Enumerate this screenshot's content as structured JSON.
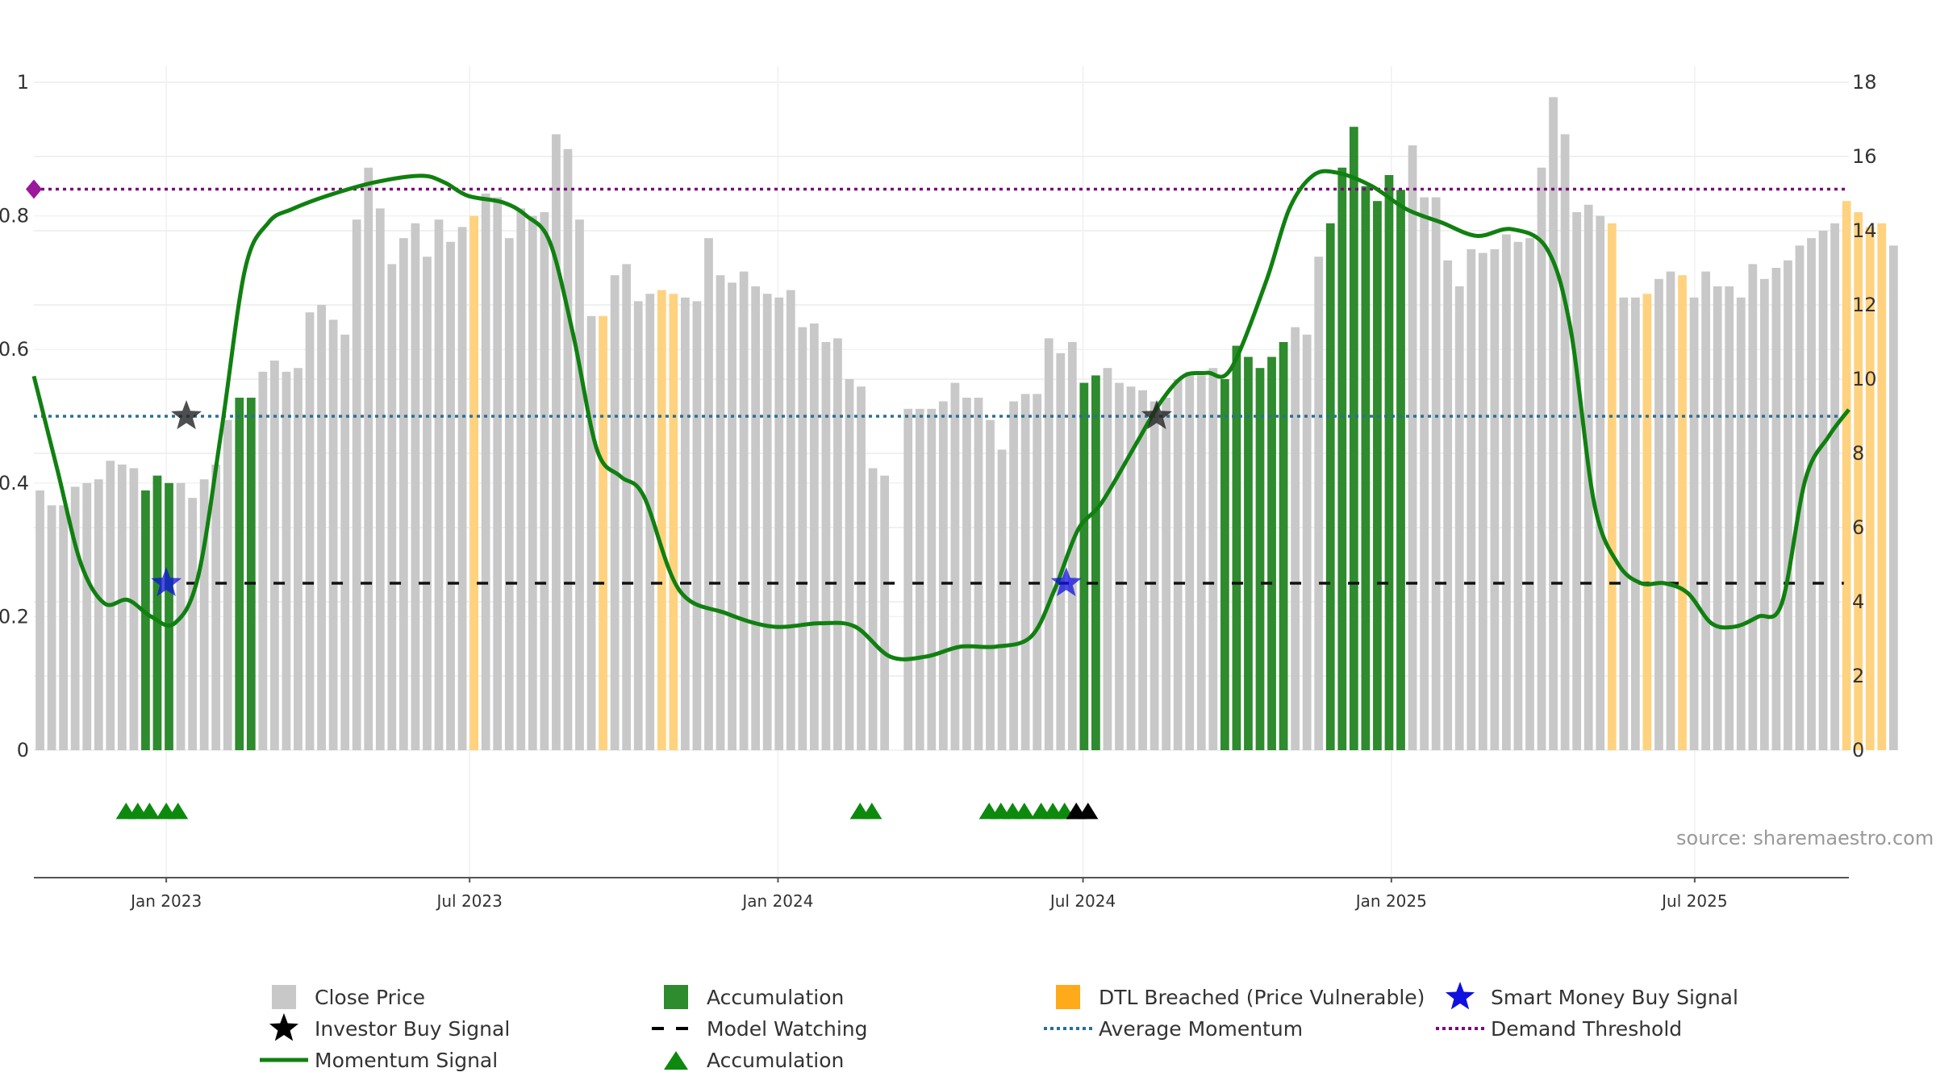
{
  "source_text": "source: sharemaestro.com",
  "colors": {
    "price": "#c8c8c8",
    "accumulation": "#2e8b2e",
    "dtl": "#ffd27f",
    "momentum": "#108010",
    "avg_momentum": "#2a6f97",
    "demand": "#7a0a7a",
    "model_watching": "#111111",
    "smart_money": "#1010e0",
    "investor": "#222222"
  },
  "chart_data": {
    "type": "bar",
    "title": "",
    "left_axis": {
      "range": [
        0,
        1
      ],
      "ticks": [
        0,
        0.2,
        0.4,
        0.6,
        0.8,
        1
      ],
      "tick_labels": [
        "0",
        "0.2",
        "0.4",
        "0.6",
        "0.8",
        "1"
      ]
    },
    "right_axis": {
      "range": [
        0,
        18
      ],
      "ticks": [
        0,
        2,
        4,
        6,
        8,
        10,
        12,
        14,
        16,
        18
      ],
      "tick_labels": [
        "0",
        "2",
        "4",
        "6",
        "8",
        "10",
        "12",
        "14",
        "16",
        "18"
      ]
    },
    "x_axis": {
      "start": "2022-10-14",
      "end": "2025-10-01",
      "ticks": [
        "2023-01-01",
        "2023-07-01",
        "2024-01-01",
        "2024-07-01",
        "2025-01-01",
        "2025-07-01"
      ],
      "tick_labels": [
        "Jan 2023",
        "Jul 2023",
        "Jan 2024",
        "Jul 2024",
        "Jan 2025",
        "Jul 2025"
      ]
    },
    "grid": true,
    "price_series": {
      "name": "Close Price",
      "start_date": "2022-10-14",
      "interval_days": 7,
      "values": [
        7.0,
        6.6,
        6.6,
        7.1,
        7.2,
        7.3,
        7.8,
        7.7,
        7.6,
        7.0,
        7.4,
        7.2,
        7.2,
        6.8,
        7.3,
        7.7,
        8.9,
        9.5,
        9.5,
        10.2,
        10.5,
        10.2,
        10.3,
        11.8,
        12.0,
        11.6,
        11.2,
        14.3,
        15.7,
        14.6,
        13.1,
        13.8,
        14.2,
        13.3,
        14.3,
        13.7,
        14.1,
        14.4,
        15.0,
        14.9,
        13.8,
        14.6,
        14.4,
        14.5,
        16.6,
        16.2,
        14.3,
        11.7,
        11.7,
        12.8,
        13.1,
        12.1,
        12.3,
        12.4,
        12.3,
        12.2,
        12.1,
        13.8,
        12.8,
        12.6,
        12.9,
        12.5,
        12.3,
        12.2,
        12.4,
        11.4,
        11.5,
        11.0,
        11.1,
        10.0,
        9.8,
        7.6,
        7.4,
        null,
        9.2,
        9.2,
        9.2,
        9.4,
        9.9,
        9.5,
        9.5,
        8.9,
        8.1,
        9.4,
        9.6,
        9.6,
        11.1,
        10.7,
        11.0,
        9.9,
        10.1,
        10.3,
        9.9,
        9.8,
        9.7,
        9.4,
        9.5,
        10.0,
        10.2,
        10.1,
        10.3,
        10.0,
        10.9,
        10.6,
        10.3,
        10.6,
        11.0,
        11.4,
        11.2,
        13.3,
        14.2,
        15.7,
        16.8,
        15.2,
        14.8,
        15.5,
        15.1,
        16.3,
        14.9,
        14.9,
        13.2,
        12.5,
        13.5,
        13.4,
        13.5,
        13.9,
        13.7,
        13.8,
        15.7,
        17.6,
        16.6,
        14.5,
        14.7,
        14.4,
        14.2,
        12.2,
        12.2,
        12.3,
        12.7,
        12.9,
        12.8,
        12.2,
        12.9,
        12.5,
        12.5,
        12.2,
        13.1,
        12.7,
        13.0,
        13.2,
        13.6,
        13.8,
        14.0,
        14.2,
        14.8,
        14.5,
        14.1,
        14.2,
        13.6
      ],
      "accumulation_indices": [
        9,
        10,
        11,
        17,
        18,
        89,
        90,
        101,
        102,
        103,
        104,
        105,
        106,
        110,
        111,
        112,
        113,
        114,
        115,
        116
      ],
      "dtl_breached_indices": [
        37,
        48,
        53,
        54,
        134,
        137,
        140,
        154,
        155,
        156,
        157
      ]
    },
    "momentum_series": {
      "name": "Momentum Signal",
      "x": [
        "2022-10-14",
        "2022-10-28",
        "2022-11-11",
        "2022-11-25",
        "2022-12-09",
        "2022-12-23",
        "2023-01-06",
        "2023-01-20",
        "2023-02-03",
        "2023-02-17",
        "2023-03-03",
        "2023-03-17",
        "2023-04-07",
        "2023-05-05",
        "2023-06-02",
        "2023-06-16",
        "2023-06-30",
        "2023-07-21",
        "2023-08-04",
        "2023-08-18",
        "2023-09-01",
        "2023-09-15",
        "2023-09-29",
        "2023-10-13",
        "2023-11-03",
        "2023-12-01",
        "2023-12-29",
        "2024-01-26",
        "2024-02-16",
        "2024-03-08",
        "2024-03-29",
        "2024-04-19",
        "2024-05-10",
        "2024-05-31",
        "2024-06-14",
        "2024-06-28",
        "2024-07-12",
        "2024-08-02",
        "2024-08-16",
        "2024-08-30",
        "2024-09-13",
        "2024-09-27",
        "2024-10-18",
        "2024-11-01",
        "2024-11-15",
        "2024-11-29",
        "2024-12-20",
        "2025-01-10",
        "2025-01-31",
        "2025-02-21",
        "2025-03-14",
        "2025-04-04",
        "2025-04-18",
        "2025-05-02",
        "2025-05-16",
        "2025-05-30",
        "2025-06-13",
        "2025-06-27",
        "2025-07-11",
        "2025-07-25",
        "2025-08-08",
        "2025-08-22",
        "2025-09-05",
        "2025-09-19",
        "2025-10-01"
      ],
      "y": [
        0.56,
        0.42,
        0.28,
        0.22,
        0.225,
        0.2,
        0.19,
        0.26,
        0.48,
        0.72,
        0.79,
        0.81,
        0.83,
        0.85,
        0.86,
        0.85,
        0.83,
        0.82,
        0.8,
        0.76,
        0.62,
        0.45,
        0.41,
        0.38,
        0.24,
        0.205,
        0.185,
        0.19,
        0.185,
        0.14,
        0.14,
        0.155,
        0.155,
        0.17,
        0.24,
        0.33,
        0.37,
        0.46,
        0.52,
        0.56,
        0.565,
        0.57,
        0.7,
        0.81,
        0.86,
        0.865,
        0.845,
        0.81,
        0.79,
        0.77,
        0.78,
        0.75,
        0.63,
        0.37,
        0.28,
        0.25,
        0.25,
        0.235,
        0.19,
        0.185,
        0.2,
        0.22,
        0.405,
        0.47,
        0.51
      ]
    },
    "average_momentum": {
      "name": "Average Momentum",
      "value": 0.5
    },
    "demand_threshold": {
      "name": "Demand Threshold",
      "value": 0.84
    },
    "model_watching": {
      "name": "Model Watching",
      "value": 0.25,
      "x_start": "2023-01-13",
      "x_end": "2025-09-28"
    },
    "investor_buy_signals": {
      "name": "Investor Buy Signal",
      "x": [
        "2023-01-13",
        "2024-08-14"
      ],
      "y": [
        0.5,
        0.5
      ]
    },
    "smart_money_buy_signals": {
      "name": "Smart Money Buy Signal",
      "x": [
        "2023-01-01",
        "2024-06-21"
      ],
      "y": [
        0.25,
        0.25
      ]
    },
    "accumulation_markers": {
      "name": "Accumulation",
      "green_x": [
        "2022-12-08",
        "2022-12-15",
        "2022-12-22",
        "2023-01-01",
        "2023-01-08",
        "2024-02-19",
        "2024-02-26",
        "2024-05-06",
        "2024-05-13",
        "2024-05-20",
        "2024-05-27",
        "2024-06-06",
        "2024-06-13",
        "2024-06-20",
        "2024-06-27"
      ],
      "black_x": [
        "2024-06-27",
        "2024-07-04"
      ]
    },
    "legend": {
      "placement": "bottom",
      "entries": [
        {
          "label": "Close Price",
          "symbol": "gray-square"
        },
        {
          "label": "Accumulation",
          "symbol": "green-square"
        },
        {
          "label": "DTL Breached (Price Vulnerable)",
          "symbol": "orange-square"
        },
        {
          "label": "Smart Money Buy Signal",
          "symbol": "blue-star"
        },
        {
          "label": "Investor Buy Signal",
          "symbol": "black-star"
        },
        {
          "label": "Model Watching",
          "symbol": "black-dash-line"
        },
        {
          "label": "Average Momentum",
          "symbol": "blue-dot-line"
        },
        {
          "label": "Demand Threshold",
          "symbol": "purple-dot-line"
        },
        {
          "label": "Momentum Signal",
          "symbol": "green-line"
        },
        {
          "label": "Accumulation",
          "symbol": "green-triangle"
        }
      ]
    }
  }
}
